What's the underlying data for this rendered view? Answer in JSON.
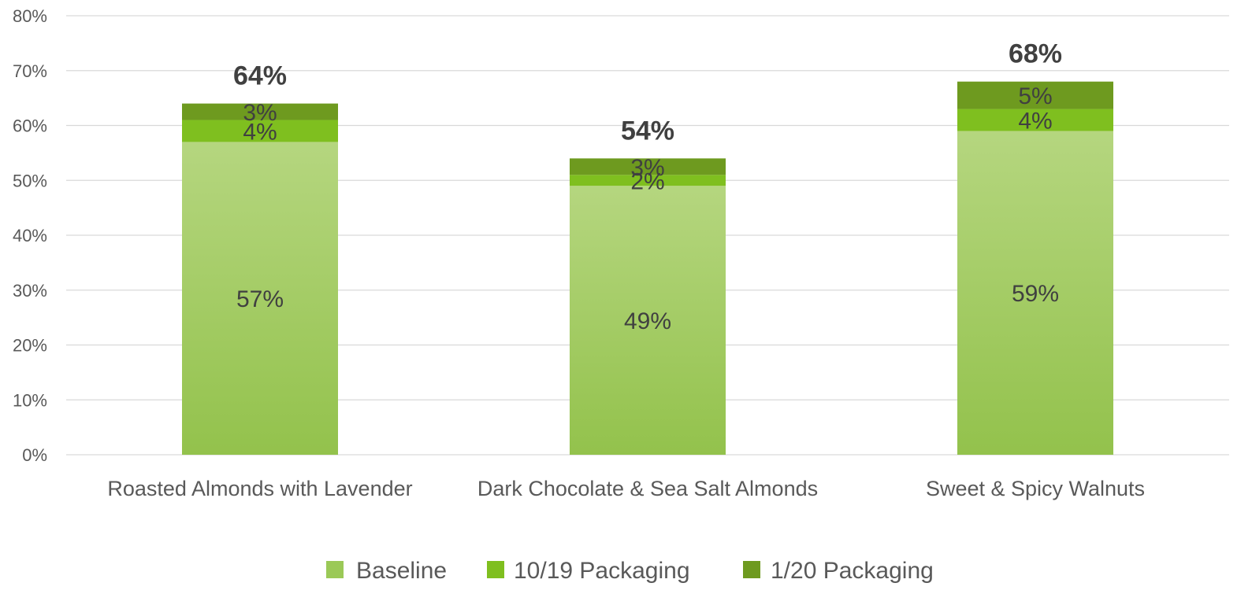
{
  "chart_data": {
    "type": "bar",
    "stacked": true,
    "categories": [
      "Roasted Almonds with Lavender",
      "Dark Chocolate & Sea Salt Almonds",
      "Sweet & Spicy Walnuts"
    ],
    "series": [
      {
        "name": "Baseline",
        "values": [
          57,
          49,
          59
        ],
        "labels": [
          "57%",
          "49%",
          "59%"
        ],
        "color": "#9bc957"
      },
      {
        "name": "10/19 Packaging",
        "values": [
          4,
          2,
          4
        ],
        "labels": [
          "4%",
          "2%",
          "4%"
        ],
        "color": "#7fbf1f"
      },
      {
        "name": "1/20 Packaging",
        "values": [
          3,
          3,
          5
        ],
        "labels": [
          "3%",
          "3%",
          "5%"
        ],
        "color": "#6e9a1f"
      }
    ],
    "totals": [
      "64%",
      "54%",
      "68%"
    ],
    "total_values": [
      64,
      54,
      68
    ],
    "ylim": [
      0,
      80
    ],
    "yticks": [
      0,
      10,
      20,
      30,
      40,
      50,
      60,
      70,
      80
    ],
    "ytick_labels": [
      "0%",
      "10%",
      "20%",
      "30%",
      "40%",
      "50%",
      "60%",
      "70%",
      "80%"
    ],
    "grid": true,
    "legend_position": "bottom"
  }
}
